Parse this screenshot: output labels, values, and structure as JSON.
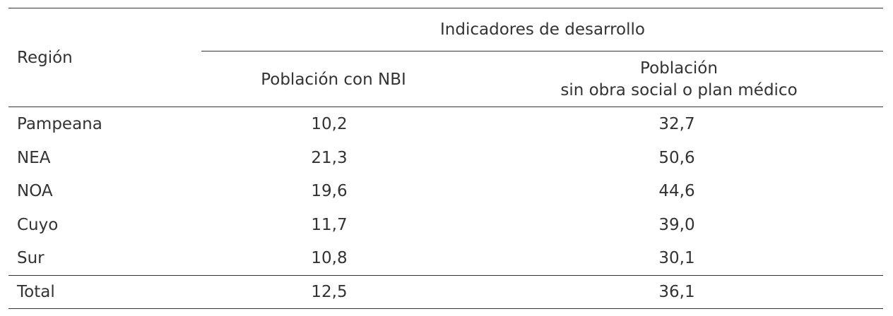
{
  "table": {
    "header": {
      "row_header": "Región",
      "group": "Indicadores de desarrollo",
      "columns": [
        [
          "Población con NBI"
        ],
        [
          "Población",
          "sin obra social o plan médico"
        ]
      ]
    },
    "rows": [
      [
        "Pampeana",
        "10,2",
        "32,7"
      ],
      [
        "NEA",
        "21,3",
        "50,6"
      ],
      [
        "NOA",
        "19,6",
        "44,6"
      ],
      [
        "Cuyo",
        "11,7",
        "39,0"
      ],
      [
        "Sur",
        "10,8",
        "30,1"
      ]
    ],
    "total": [
      "Total",
      "12,5",
      "36,1"
    ]
  }
}
